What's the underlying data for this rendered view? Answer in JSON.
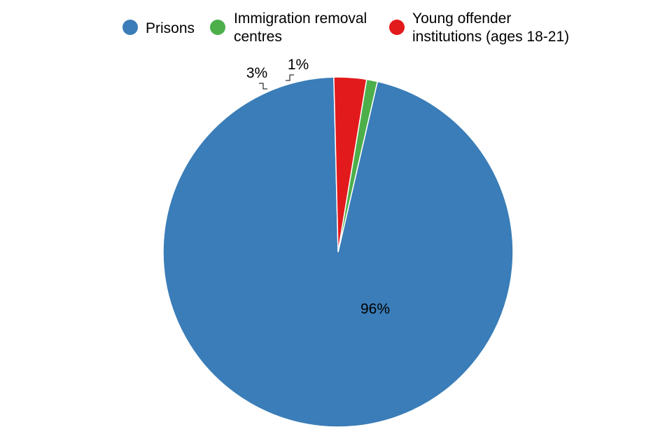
{
  "chart_data": {
    "type": "pie",
    "title": "",
    "legend_position": "top",
    "slices": [
      {
        "name": "Prisons",
        "legend_lines": [
          "Prisons"
        ],
        "value": 96,
        "label": "96%",
        "color": "#3a7db8"
      },
      {
        "name": "Immigration removal centres",
        "legend_lines": [
          "Immigration removal",
          "centres"
        ],
        "value": 1,
        "label": "1%",
        "color": "#4caf4a"
      },
      {
        "name": "Young offender institutions (ages 18-21)",
        "legend_lines": [
          "Young offender",
          "institutions (ages 18-21)"
        ],
        "value": 3,
        "label": "3%",
        "color": "#e31a1c"
      }
    ]
  }
}
